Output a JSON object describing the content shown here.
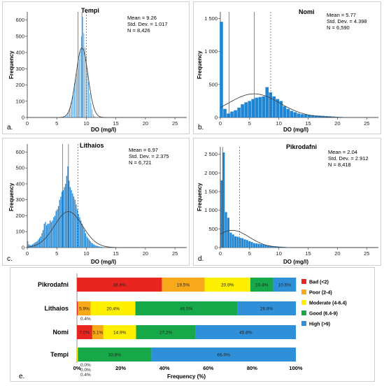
{
  "chart_data": [
    {
      "type": "bar",
      "panel_label": "a.",
      "title": "Tempi",
      "stats": [
        "Mean = 9.26",
        "Std. Dev. = 1.017",
        "N = 8,426"
      ],
      "xlabel": "DO (mg/l)",
      "ylabel": "Frequency",
      "xlim": [
        0,
        27
      ],
      "ylim": [
        0,
        650
      ],
      "xticks": [
        "0",
        "5",
        "10",
        "15",
        "20",
        "25"
      ],
      "yticks": [
        "0",
        "100",
        "200",
        "300",
        "400",
        "500",
        "600"
      ],
      "mean": 9.26,
      "sd": 1.017,
      "n": 8426,
      "bin_width": 0.13,
      "vlines": [
        8.6,
        9.26,
        10.0
      ],
      "hist_x": [
        6.6,
        6.8,
        7.0,
        7.2,
        7.4,
        7.6,
        7.8,
        8.0,
        8.2,
        8.4,
        8.6,
        8.8,
        9.0,
        9.2,
        9.4,
        9.6,
        9.8,
        10.0,
        10.2,
        10.4,
        10.6,
        10.8,
        11.0,
        11.2,
        11.4
      ],
      "hist_y": [
        8,
        15,
        30,
        60,
        90,
        120,
        160,
        210,
        240,
        270,
        300,
        360,
        420,
        500,
        620,
        520,
        430,
        380,
        300,
        220,
        150,
        90,
        50,
        20,
        8
      ]
    },
    {
      "type": "bar",
      "panel_label": "b.",
      "title": "Nomi",
      "stats": [
        "Mean = 5.77",
        "Std. Dev. = 4.398",
        "N = 6,590"
      ],
      "xlabel": "DO (mg/l)",
      "ylabel": "Frequency",
      "xlim": [
        0,
        27
      ],
      "ylim": [
        0,
        1600
      ],
      "xticks": [
        "0",
        "5",
        "10",
        "15",
        "20",
        "25"
      ],
      "yticks": [
        "0",
        "500",
        "1 000",
        "1 500"
      ],
      "mean": 5.77,
      "sd": 4.398,
      "n": 6590,
      "bin_width": 0.6,
      "vlines": [
        1.5,
        5.8,
        8.6
      ],
      "hist_x": [
        0.2,
        0.8,
        1.4,
        2.0,
        2.6,
        3.2,
        3.8,
        4.4,
        5.0,
        5.6,
        6.2,
        6.8,
        7.4,
        8.0,
        8.6,
        9.2,
        9.8,
        10.4,
        11.0,
        11.6,
        12.2,
        12.8,
        13.4,
        14.0,
        14.6,
        15.2,
        15.8,
        16.4,
        17.0,
        17.6,
        18.2,
        18.8,
        19.4,
        20.0,
        20.6,
        21.2
      ],
      "hist_y": [
        1450,
        130,
        60,
        90,
        110,
        150,
        200,
        230,
        250,
        280,
        300,
        310,
        320,
        460,
        380,
        320,
        280,
        250,
        170,
        130,
        100,
        80,
        60,
        50,
        45,
        40,
        35,
        30,
        28,
        25,
        22,
        18,
        14,
        10,
        8,
        5
      ]
    },
    {
      "type": "bar",
      "panel_label": "c.",
      "title": "Lithaios",
      "stats": [
        "Mean = 6.97",
        "Std. Dev. = 2.375",
        "N = 6,721"
      ],
      "xlabel": "DO (mg/l)",
      "ylabel": "Frequency",
      "xlim": [
        0,
        27
      ],
      "ylim": [
        0,
        650
      ],
      "xticks": [
        "0",
        "5",
        "10",
        "15",
        "20",
        "25"
      ],
      "yticks": [
        "0",
        "100",
        "200",
        "300",
        "400",
        "500",
        "600"
      ],
      "mean": 6.97,
      "sd": 2.375,
      "n": 6721,
      "bin_width": 0.2,
      "vlines": [
        6.0,
        6.97,
        8.6
      ],
      "hist_x": [
        0.1,
        0.3,
        0.5,
        0.7,
        0.9,
        1.1,
        1.3,
        1.5,
        1.7,
        1.9,
        2.1,
        2.3,
        2.5,
        2.7,
        2.9,
        3.1,
        3.3,
        3.5,
        3.7,
        3.9,
        4.1,
        4.3,
        4.5,
        4.7,
        4.9,
        5.1,
        5.3,
        5.5,
        5.7,
        5.9,
        6.1,
        6.3,
        6.5,
        6.7,
        6.9,
        7.1,
        7.3,
        7.5,
        7.7,
        7.9,
        8.1,
        8.3,
        8.5,
        8.7,
        8.9,
        9.1,
        9.3,
        9.5,
        9.7,
        9.9,
        10.1,
        10.3,
        10.5,
        10.7,
        10.9,
        11.1,
        11.3,
        11.5,
        11.7,
        11.9,
        12.1,
        12.3,
        12.5,
        12.7,
        12.9,
        13.1
      ],
      "hist_y": [
        40,
        20,
        15,
        15,
        20,
        25,
        30,
        35,
        40,
        50,
        60,
        70,
        90,
        110,
        150,
        160,
        140,
        150,
        150,
        170,
        160,
        170,
        190,
        200,
        230,
        240,
        260,
        300,
        320,
        350,
        360,
        380,
        400,
        450,
        510,
        420,
        380,
        360,
        340,
        320,
        300,
        270,
        240,
        210,
        190,
        170,
        150,
        130,
        110,
        90,
        70,
        60,
        50,
        40,
        30,
        25,
        20,
        15,
        12,
        10,
        8,
        6,
        5,
        4,
        3,
        2
      ]
    },
    {
      "type": "bar",
      "panel_label": "d.",
      "title": "Pikrodafni",
      "stats": [
        "Mean = 2.04",
        "Std. Dev. = 2.912",
        "N = 8,418"
      ],
      "xlabel": "DO (mg/l)",
      "ylabel": "Frequency",
      "xlim": [
        0,
        27
      ],
      "ylim": [
        0,
        2700
      ],
      "xticks": [
        "0",
        "5",
        "10",
        "15",
        "20",
        "25"
      ],
      "yticks": [
        "0",
        "500",
        "1 000",
        "1 500",
        "2 000",
        "2 500"
      ],
      "mean": 2.04,
      "sd": 2.912,
      "n": 8418,
      "bin_width": 0.4,
      "vlines": [
        0.4,
        3.3
      ],
      "hist_x": [
        0.2,
        0.6,
        1.0,
        1.4,
        1.8,
        2.2,
        2.6,
        3.0,
        3.4,
        3.8,
        4.2,
        4.6,
        5.0,
        5.4,
        5.8,
        6.2,
        6.6,
        7.0,
        7.4,
        7.8,
        8.2,
        8.6,
        9.0,
        9.4,
        9.8,
        10.2,
        10.6,
        11.0,
        11.4,
        11.8,
        12.2
      ],
      "hist_y": [
        1800,
        2550,
        950,
        800,
        400,
        350,
        300,
        290,
        260,
        250,
        220,
        200,
        170,
        150,
        120,
        110,
        100,
        90,
        80,
        70,
        60,
        50,
        40,
        35,
        30,
        25,
        20,
        15,
        10,
        8,
        5
      ]
    },
    {
      "type": "bar",
      "orientation": "horizontal",
      "stacked": true,
      "panel_label": "e.",
      "xlabel": "Frequency (%)",
      "xticks": [
        "0%",
        "20%",
        "40%",
        "60%",
        "80%",
        "100%"
      ],
      "categories": [
        "Pikrodafni",
        "Lithaios",
        "Nomi",
        "Tempi"
      ],
      "series": [
        {
          "name": "Bad (<2)",
          "color": "#e8251f",
          "values": [
            38.8,
            0.4,
            7.0,
            0.0
          ]
        },
        {
          "name": "Poor (2-4)",
          "color": "#f7a81b",
          "values": [
            19.5,
            5.9,
            5.1,
            0.0
          ]
        },
        {
          "name": "Moderate (4-6.4)",
          "color": "#ffef00",
          "values": [
            20.9,
            20.4,
            14.9,
            0.4
          ]
        },
        {
          "name": "Good (6.4-9)",
          "color": "#17a84a",
          "values": [
            10.4,
            46.5,
            27.2,
            33.6
          ]
        },
        {
          "name": "High (>9)",
          "color": "#2f8fd8",
          "values": [
            10.5,
            26.8,
            45.8,
            66.0
          ]
        }
      ],
      "labels": [
        [
          "38.8%",
          "19.5%",
          "20.9%",
          "10.4%",
          "10.5%"
        ],
        [
          "0.4%",
          "5.9%",
          "20.4%",
          "46.5%",
          "26.8%"
        ],
        [
          "7.0%",
          "5.1%",
          "14.9%",
          "27.2%",
          "45.8%"
        ],
        [
          "0.0%",
          "0.0%",
          "0.4%",
          "33.6%",
          "66.0%"
        ]
      ],
      "legend_position": "right",
      "xlim": [
        0,
        100
      ]
    }
  ]
}
